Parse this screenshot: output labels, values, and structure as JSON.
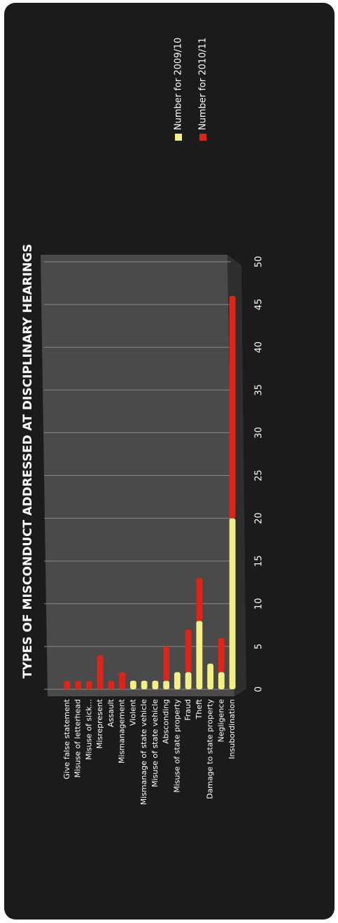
{
  "chart_data": {
    "type": "bar",
    "stacked": true,
    "orientation": "horizontal",
    "title": "TYPES OF MISCONDUCT ADDRESSED AT DISCIPLINARY HEARINGS",
    "categories": [
      "Give false statement",
      "Misuse of letterhead",
      "Misuse of sick...",
      "Misrepresent",
      "Assault",
      "Mismanagement",
      "Violent",
      "Mismanage of state vehicle",
      "Misuse of state vehicle",
      "Absconding",
      "Misuse of state property",
      "Fraud",
      "Theft",
      "Damage to state property",
      "Negligence",
      "Insubordination"
    ],
    "series": [
      {
        "name": "Number for 2009/10",
        "color": "#f3ee86",
        "values": [
          0,
          0,
          0,
          0,
          0,
          0,
          1,
          1,
          1,
          1,
          2,
          2,
          8,
          3,
          2,
          20
        ]
      },
      {
        "name": "Number for 2010/11",
        "color": "#dc2418",
        "values": [
          1,
          1,
          1,
          4,
          1,
          2,
          0,
          0,
          0,
          4,
          0,
          5,
          5,
          0,
          4,
          26
        ]
      }
    ],
    "xlim": [
      0,
      50
    ],
    "xticks": [
      0,
      5,
      10,
      15,
      20,
      25,
      30,
      35,
      40,
      45,
      50
    ],
    "grid": true
  }
}
